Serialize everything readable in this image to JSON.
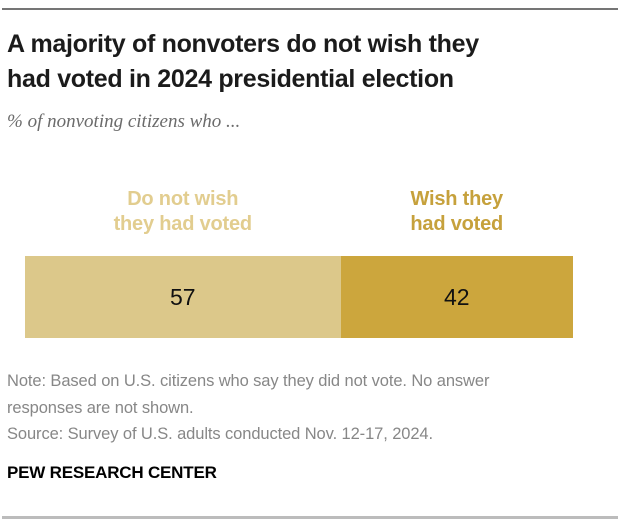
{
  "header": {
    "title_lines": [
      "A majority of nonvoters do not wish they",
      "had voted in 2024 presidential election"
    ],
    "subtitle": "% of nonvoting citizens who ..."
  },
  "chart_data": {
    "type": "bar",
    "orientation": "horizontal",
    "stacked": true,
    "title": "A majority of nonvoters do not wish they had voted in 2024 presidential election",
    "subtitle": "% of nonvoting citizens who ...",
    "categories": [
      "Do not wish they had voted",
      "Wish they had voted"
    ],
    "values": [
      57,
      42
    ],
    "unit": "%",
    "total_shown": 99,
    "axis": "none",
    "legend_position": "above-segments",
    "colors": [
      "#dcc88a",
      "#cca63d"
    ],
    "label_colors": [
      "#e2cd8f",
      "#c6a13c"
    ],
    "value_label_color": "#111111"
  },
  "chart": {
    "segments": [
      {
        "label_lines": [
          "Do not wish",
          "they had voted"
        ],
        "value": "57"
      },
      {
        "label_lines": [
          "Wish they",
          "had voted"
        ],
        "value": "42"
      }
    ]
  },
  "footer": {
    "note_lines": [
      "Note: Based on U.S. citizens who say they did not vote. No answer",
      "responses are not shown.",
      "Source: Survey of U.S. adults conducted Nov. 12-17, 2024."
    ],
    "brand": "PEW RESEARCH CENTER"
  }
}
